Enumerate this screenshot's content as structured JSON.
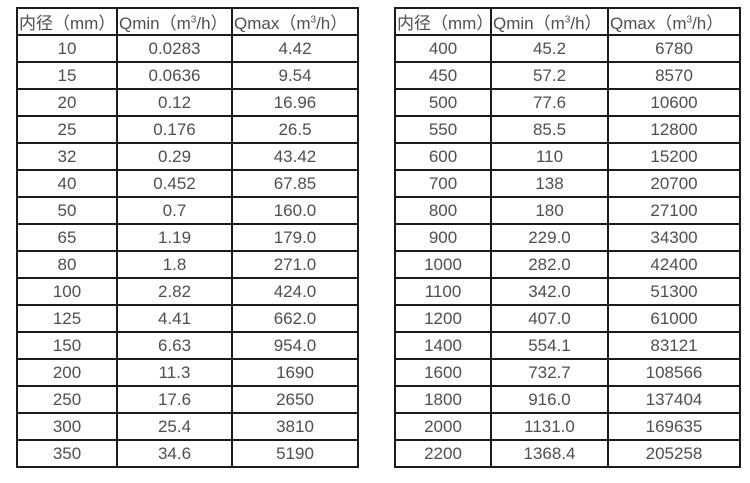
{
  "headers": {
    "diameter": "内径（mm）",
    "qmin_pre": "Qmin（m",
    "sup": "3",
    "qmin_post": "/h）",
    "qmax_pre": "Qmax（m",
    "qmax_post": "/h）"
  },
  "colors": {
    "border": "#1b1b1b",
    "text": "#4f4f4f",
    "background": "#ffffff"
  },
  "tables": {
    "left": {
      "rows": [
        [
          "10",
          "0.0283",
          "4.42"
        ],
        [
          "15",
          "0.0636",
          "9.54"
        ],
        [
          "20",
          "0.12",
          "16.96"
        ],
        [
          "25",
          "0.176",
          "26.5"
        ],
        [
          "32",
          "0.29",
          "43.42"
        ],
        [
          "40",
          "0.452",
          "67.85"
        ],
        [
          "50",
          "0.7",
          "160.0"
        ],
        [
          "65",
          "1.19",
          "179.0"
        ],
        [
          "80",
          "1.8",
          "271.0"
        ],
        [
          "100",
          "2.82",
          "424.0"
        ],
        [
          "125",
          "4.41",
          "662.0"
        ],
        [
          "150",
          "6.63",
          "954.0"
        ],
        [
          "200",
          "11.3",
          "1690"
        ],
        [
          "250",
          "17.6",
          "2650"
        ],
        [
          "300",
          "25.4",
          "3810"
        ],
        [
          "350",
          "34.6",
          "5190"
        ]
      ]
    },
    "right": {
      "rows": [
        [
          "400",
          "45.2",
          "6780"
        ],
        [
          "450",
          "57.2",
          "8570"
        ],
        [
          "500",
          "77.6",
          "10600"
        ],
        [
          "550",
          "85.5",
          "12800"
        ],
        [
          "600",
          "110",
          "15200"
        ],
        [
          "700",
          "138",
          "20700"
        ],
        [
          "800",
          "180",
          "27100"
        ],
        [
          "900",
          "229.0",
          "34300"
        ],
        [
          "1000",
          "282.0",
          "42400"
        ],
        [
          "1100",
          "342.0",
          "51300"
        ],
        [
          "1200",
          "407.0",
          "61000"
        ],
        [
          "1400",
          "554.1",
          "83121"
        ],
        [
          "1600",
          "732.7",
          "108566"
        ],
        [
          "1800",
          "916.0",
          "137404"
        ],
        [
          "2000",
          "1131.0",
          "169635"
        ],
        [
          "2200",
          "1368.4",
          "205258"
        ]
      ]
    }
  }
}
